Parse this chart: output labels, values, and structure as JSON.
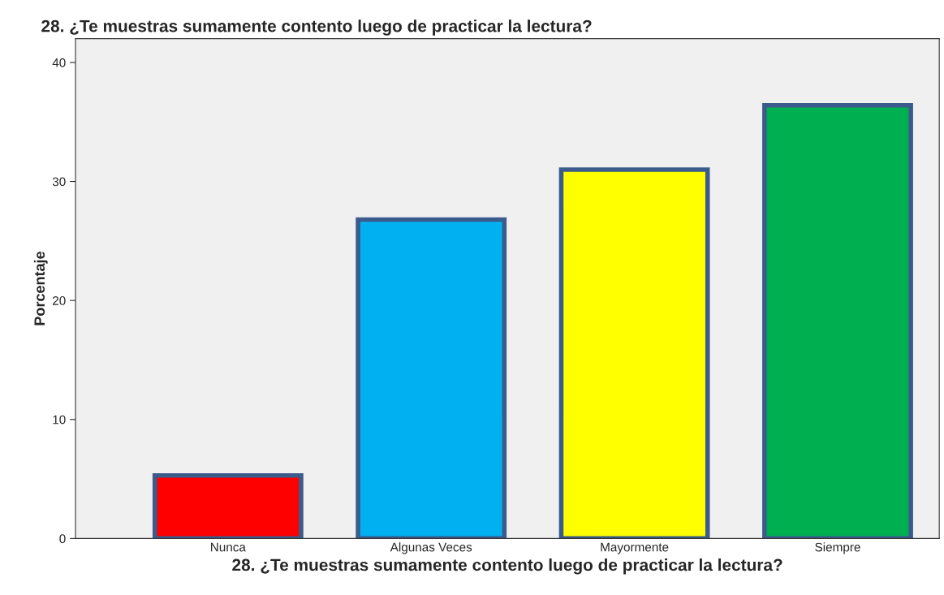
{
  "chart_data": {
    "type": "bar",
    "title": "28. ¿Te muestras sumamente contento luego de practicar la lectura?",
    "xlabel": "28. ¿Te muestras sumamente contento luego de practicar la lectura?",
    "ylabel": "Porcentaje",
    "categories": [
      "Nunca",
      "Algunas Veces",
      "Mayormente",
      "Siempre"
    ],
    "values": [
      5.3,
      26.8,
      31.0,
      36.4
    ],
    "colors": [
      "#ff0000",
      "#00b0f0",
      "#ffff00",
      "#00b050"
    ],
    "ylim": [
      0,
      42
    ],
    "yticks": [
      0,
      10,
      20,
      30,
      40
    ],
    "grid": false
  }
}
